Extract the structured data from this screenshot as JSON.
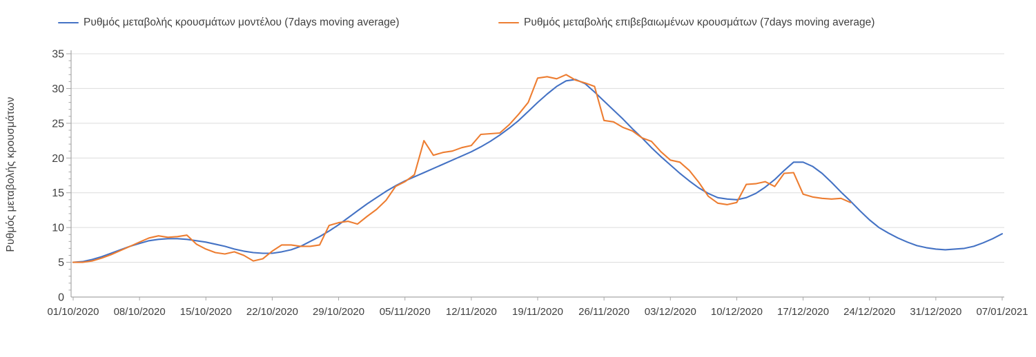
{
  "style": {
    "background": "#ffffff",
    "text_color": "#404040",
    "axis_color": "#a6a6a6",
    "grid_color": "#dcdcdc",
    "model_color": "#4472c4",
    "confirmed_color": "#ed7d31"
  },
  "legend": {
    "items": [
      {
        "key": "model",
        "label": "Ρυθμός μεταβολής κρουσμάτων μοντέλου (7days moving average)",
        "color": "#4472c4"
      },
      {
        "key": "confirmed",
        "label": "Ρυθμός μεταβολής επιβεβαιωμένων κρουσμάτων (7days moving average)",
        "color": "#ed7d31"
      }
    ]
  },
  "chart_data": {
    "type": "line",
    "title": "",
    "xlabel": "",
    "ylabel": "Ρυθμός μεταβολής κρουσμάτων",
    "ylim": [
      0,
      35
    ],
    "y_ticks": [
      0,
      5,
      10,
      15,
      20,
      25,
      30,
      35
    ],
    "x_range_days": [
      0,
      98
    ],
    "grid": "horizontal-only",
    "legend_position": "top",
    "x_ticks": {
      "days": [
        0,
        7,
        14,
        21,
        28,
        35,
        42,
        49,
        56,
        63,
        70,
        77,
        84,
        91,
        98
      ],
      "labels": [
        "01/10/2020",
        "08/10/2020",
        "15/10/2020",
        "22/10/2020",
        "29/10/2020",
        "05/11/2020",
        "12/11/2020",
        "19/11/2020",
        "26/11/2020",
        "03/12/2020",
        "10/12/2020",
        "17/12/2020",
        "24/12/2020",
        "31/12/2020",
        "07/01/2021"
      ]
    },
    "series": [
      {
        "key": "model",
        "name": "Ρυθμός μεταβολής κρουσμάτων μοντέλου (7days moving average)",
        "color": "#4472c4",
        "start_day": 0,
        "values": [
          5.0,
          5.1,
          5.4,
          5.8,
          6.3,
          6.8,
          7.3,
          7.7,
          8.1,
          8.3,
          8.4,
          8.4,
          8.3,
          8.1,
          7.9,
          7.6,
          7.3,
          6.9,
          6.6,
          6.4,
          6.3,
          6.3,
          6.5,
          6.8,
          7.3,
          8.0,
          8.7,
          9.5,
          10.4,
          11.4,
          12.4,
          13.4,
          14.3,
          15.2,
          16.0,
          16.7,
          17.3,
          17.9,
          18.5,
          19.1,
          19.7,
          20.3,
          20.9,
          21.6,
          22.4,
          23.3,
          24.3,
          25.4,
          26.7,
          28.0,
          29.2,
          30.3,
          31.1,
          31.3,
          30.7,
          29.5,
          28.2,
          26.9,
          25.6,
          24.2,
          22.9,
          21.5,
          20.2,
          19.0,
          17.8,
          16.7,
          15.7,
          14.9,
          14.3,
          14.1,
          14.0,
          14.3,
          14.9,
          15.8,
          16.9,
          18.2,
          19.4,
          19.4,
          18.8,
          17.8,
          16.5,
          15.1,
          13.8,
          12.4,
          11.1,
          10.0,
          9.2,
          8.5,
          7.9,
          7.4,
          7.1,
          6.9,
          6.8,
          6.9,
          7.0,
          7.3,
          7.8,
          8.4,
          9.1
        ]
      },
      {
        "key": "confirmed",
        "name": "Ρυθμός μεταβολής επιβεβαιωμένων κρουσμάτων (7days moving average)",
        "color": "#ed7d31",
        "start_day": 0,
        "values": [
          5.0,
          5.0,
          5.2,
          5.6,
          6.1,
          6.7,
          7.3,
          7.9,
          8.5,
          8.8,
          8.6,
          8.7,
          8.9,
          7.6,
          6.9,
          6.4,
          6.2,
          6.5,
          6.0,
          5.2,
          5.5,
          6.6,
          7.5,
          7.5,
          7.3,
          7.3,
          7.5,
          10.3,
          10.7,
          10.9,
          10.5,
          11.6,
          12.6,
          13.9,
          15.9,
          16.6,
          17.6,
          22.5,
          20.4,
          20.8,
          21.0,
          21.5,
          21.8,
          23.4,
          23.5,
          23.6,
          24.8,
          26.3,
          28.0,
          31.5,
          31.7,
          31.4,
          32.0,
          31.2,
          30.8,
          30.3,
          25.4,
          25.2,
          24.4,
          23.9,
          22.9,
          22.4,
          20.9,
          19.7,
          19.4,
          18.2,
          16.5,
          14.5,
          13.5,
          13.3,
          13.6,
          16.2,
          16.3,
          16.6,
          15.9,
          17.8,
          17.9,
          14.8,
          14.4,
          14.2,
          14.1,
          14.2,
          13.6
        ]
      }
    ]
  }
}
